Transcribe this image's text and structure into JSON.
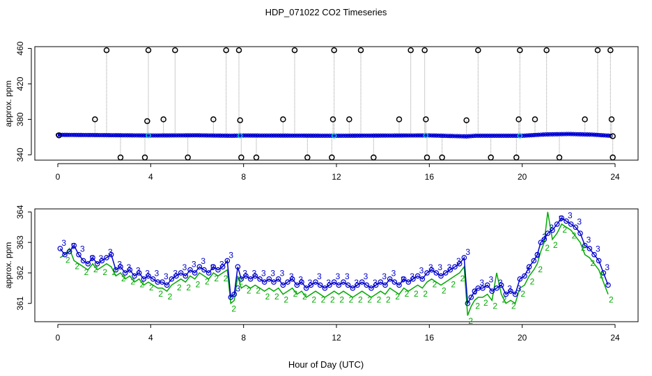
{
  "title": "HDP_071022  CO2 Timeseries",
  "xlabel": "Hour of Day (UTC)",
  "colors": {
    "axis": "#000000",
    "raw_points": "#000000",
    "raw_line": "#999999",
    "avg_line": "#0000ff",
    "avg_points": "#0000cc",
    "flag_points": "#00cccc",
    "level3": "#0000cc",
    "level2": "#00aa00"
  },
  "chart_data": [
    {
      "type": "scatter",
      "title": "HDP_071022  CO2 Timeseries",
      "ylabel": "approx. ppm",
      "xlim": [
        0,
        24
      ],
      "ylim": [
        334,
        462
      ],
      "x_ticks": [
        0,
        4,
        8,
        12,
        16,
        20,
        24
      ],
      "y_ticks": [
        340,
        380,
        420,
        460
      ],
      "series": [
        {
          "kind": "spikes",
          "points": [
            [
              1.6,
              380
            ],
            [
              2.1,
              458
            ],
            [
              2.7,
              337
            ],
            [
              3.75,
              337
            ],
            [
              3.85,
              378
            ],
            [
              3.9,
              458
            ],
            [
              4.55,
              380
            ],
            [
              5.05,
              458
            ],
            [
              5.6,
              337
            ],
            [
              6.7,
              380
            ],
            [
              7.25,
              458
            ],
            [
              7.8,
              458
            ],
            [
              7.85,
              379
            ],
            [
              7.9,
              337
            ],
            [
              8.55,
              337
            ],
            [
              9.7,
              380
            ],
            [
              10.2,
              458
            ],
            [
              10.75,
              337
            ],
            [
              11.8,
              337
            ],
            [
              11.85,
              380
            ],
            [
              11.9,
              458
            ],
            [
              12.55,
              380
            ],
            [
              13.05,
              458
            ],
            [
              13.6,
              337
            ],
            [
              14.7,
              380
            ],
            [
              15.2,
              458
            ],
            [
              15.8,
              458
            ],
            [
              15.85,
              380
            ],
            [
              15.9,
              337
            ],
            [
              16.55,
              337
            ],
            [
              17.6,
              379
            ],
            [
              18.1,
              458
            ],
            [
              18.65,
              337
            ],
            [
              19.75,
              337
            ],
            [
              19.85,
              380
            ],
            [
              19.9,
              458
            ],
            [
              20.55,
              380
            ],
            [
              21.05,
              458
            ],
            [
              21.6,
              337
            ],
            [
              22.7,
              380
            ],
            [
              23.25,
              458
            ],
            [
              23.8,
              458
            ],
            [
              23.85,
              380
            ],
            [
              23.9,
              337
            ],
            [
              0.05,
              362
            ],
            [
              23.9,
              361
            ]
          ]
        },
        {
          "kind": "baseline",
          "points": [
            [
              0,
              362.5
            ],
            [
              2,
              362.2
            ],
            [
              4,
              361.8
            ],
            [
              6,
              362
            ],
            [
              7.5,
              361.5
            ],
            [
              8,
              361.8
            ],
            [
              12,
              361.5
            ],
            [
              16,
              361.9
            ],
            [
              17.6,
              360.8
            ],
            [
              18,
              361.5
            ],
            [
              20,
              361.5
            ],
            [
              21,
              363
            ],
            [
              22,
              363.5
            ],
            [
              23,
              362.8
            ],
            [
              23.8,
              361.5
            ]
          ]
        }
      ]
    },
    {
      "type": "line",
      "ylabel": "approx. ppm",
      "xlabel": "Hour of Day (UTC)",
      "xlim": [
        0,
        24
      ],
      "ylim": [
        360.4,
        364.1
      ],
      "x_ticks": [
        0,
        4,
        8,
        12,
        16,
        20,
        24
      ],
      "y_ticks": [
        361,
        362,
        363,
        364
      ],
      "series_labels": [
        "3",
        "2"
      ],
      "x": [
        0.1,
        0.3,
        0.5,
        0.7,
        0.9,
        1.1,
        1.3,
        1.5,
        1.7,
        1.9,
        2.1,
        2.3,
        2.5,
        2.7,
        2.9,
        3.1,
        3.3,
        3.5,
        3.7,
        3.9,
        4.1,
        4.3,
        4.5,
        4.7,
        4.9,
        5.1,
        5.3,
        5.5,
        5.7,
        5.9,
        6.1,
        6.3,
        6.5,
        6.7,
        6.9,
        7.1,
        7.3,
        7.45,
        7.6,
        7.75,
        7.9,
        8.1,
        8.3,
        8.5,
        8.7,
        8.9,
        9.1,
        9.3,
        9.5,
        9.7,
        9.9,
        10.1,
        10.3,
        10.5,
        10.7,
        10.9,
        11.1,
        11.3,
        11.5,
        11.7,
        11.9,
        12.1,
        12.3,
        12.5,
        12.7,
        12.9,
        13.1,
        13.3,
        13.5,
        13.7,
        13.9,
        14.1,
        14.3,
        14.5,
        14.7,
        14.9,
        15.1,
        15.3,
        15.5,
        15.7,
        15.9,
        16.1,
        16.3,
        16.5,
        16.7,
        16.9,
        17.1,
        17.3,
        17.5,
        17.65,
        17.8,
        17.95,
        18.1,
        18.3,
        18.5,
        18.7,
        18.9,
        19.1,
        19.3,
        19.5,
        19.7,
        19.9,
        20.1,
        20.3,
        20.5,
        20.65,
        20.8,
        20.95,
        21.1,
        21.3,
        21.5,
        21.7,
        21.9,
        22.1,
        22.3,
        22.5,
        22.7,
        22.9,
        23.1,
        23.3,
        23.5,
        23.7
      ],
      "series": [
        {
          "name": "3",
          "values": [
            362.8,
            362.6,
            362.7,
            362.9,
            362.6,
            362.4,
            362.3,
            362.5,
            362.3,
            362.4,
            362.5,
            362.6,
            362.1,
            362.2,
            362.0,
            362.1,
            361.9,
            362.0,
            361.8,
            361.9,
            361.8,
            361.7,
            361.7,
            361.6,
            361.8,
            361.9,
            362.0,
            361.9,
            362.1,
            362.0,
            362.2,
            362.1,
            362.0,
            362.2,
            362.1,
            362.2,
            362.4,
            361.2,
            361.3,
            362.2,
            361.8,
            361.9,
            361.8,
            361.9,
            361.8,
            361.7,
            361.8,
            361.7,
            361.8,
            361.6,
            361.7,
            361.8,
            361.6,
            361.7,
            361.5,
            361.6,
            361.7,
            361.6,
            361.5,
            361.6,
            361.7,
            361.6,
            361.7,
            361.6,
            361.5,
            361.6,
            361.7,
            361.6,
            361.5,
            361.6,
            361.7,
            361.6,
            361.8,
            361.7,
            361.6,
            361.8,
            361.7,
            361.8,
            361.9,
            361.8,
            362.0,
            362.1,
            362.0,
            361.9,
            362.0,
            362.1,
            362.2,
            362.3,
            362.5,
            361.0,
            361.2,
            361.4,
            361.5,
            361.5,
            361.6,
            361.4,
            361.5,
            361.6,
            361.3,
            361.4,
            361.3,
            361.8,
            361.9,
            362.2,
            362.4,
            362.6,
            363.0,
            363.1,
            363.3,
            363.4,
            363.6,
            363.8,
            363.7,
            363.6,
            363.5,
            363.3,
            362.9,
            362.8,
            362.6,
            362.4,
            362.0,
            361.6
          ]
        },
        {
          "name": "2",
          "values": [
            362.5,
            362.6,
            362.8,
            362.4,
            362.3,
            362.2,
            362.1,
            362.3,
            362.1,
            362.2,
            362.3,
            362.2,
            361.9,
            362.0,
            361.8,
            361.9,
            361.7,
            361.8,
            361.6,
            361.7,
            361.6,
            361.5,
            361.5,
            361.4,
            361.6,
            361.7,
            361.8,
            361.7,
            361.9,
            361.8,
            362.0,
            361.9,
            361.8,
            362.0,
            361.9,
            362.0,
            362.1,
            361.0,
            361.1,
            361.9,
            361.5,
            361.6,
            361.5,
            361.6,
            361.5,
            361.4,
            361.5,
            361.4,
            361.5,
            361.3,
            361.4,
            361.5,
            361.3,
            361.4,
            361.2,
            361.3,
            361.4,
            361.3,
            361.2,
            361.3,
            361.4,
            361.3,
            361.4,
            361.3,
            361.2,
            361.3,
            361.4,
            361.3,
            361.2,
            361.3,
            361.4,
            361.3,
            361.5,
            361.4,
            361.3,
            361.5,
            361.4,
            361.5,
            361.6,
            361.5,
            361.7,
            361.8,
            361.7,
            361.6,
            361.7,
            361.8,
            361.9,
            362.0,
            362.2,
            360.6,
            360.9,
            361.1,
            361.2,
            361.2,
            361.3,
            361.1,
            362.0,
            361.3,
            361.0,
            361.1,
            361.0,
            361.5,
            361.6,
            361.9,
            362.1,
            362.3,
            362.7,
            363.0,
            364.0,
            363.1,
            363.3,
            363.6,
            363.5,
            363.4,
            363.2,
            363.0,
            362.6,
            362.5,
            362.3,
            362.1,
            361.7,
            361.3
          ]
        }
      ]
    }
  ]
}
